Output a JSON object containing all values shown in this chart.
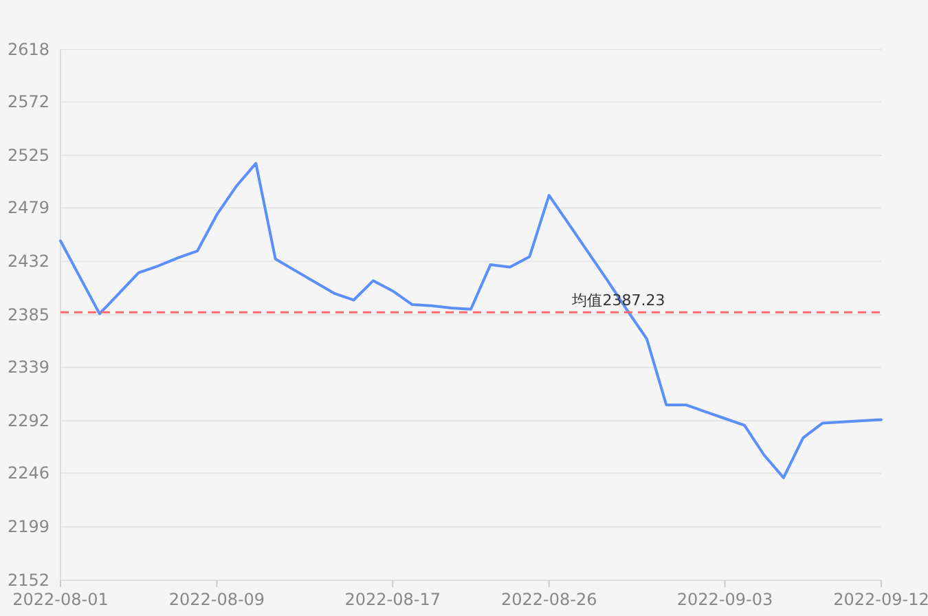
{
  "chart_data": {
    "type": "line",
    "categories": [
      "2022-08-01",
      null,
      null,
      null,
      null,
      null,
      null,
      null,
      "2022-08-09",
      null,
      null,
      null,
      null,
      null,
      null,
      null,
      null,
      "2022-08-17",
      null,
      null,
      null,
      null,
      null,
      null,
      null,
      "2022-08-26",
      null,
      null,
      null,
      null,
      null,
      null,
      null,
      null,
      "2022-09-03",
      null,
      null,
      null,
      null,
      null,
      null,
      null,
      "2022-09-12"
    ],
    "series": [
      {
        "color": "#5b8ff9",
        "values": [
          2450,
          2418,
          2386,
          2404,
          2422,
          2428,
          2435,
          2441,
          2473,
          2498,
          2518,
          2434,
          2424,
          2414,
          2404,
          2398,
          2415,
          2406,
          2394,
          2393,
          2391,
          2390,
          2429,
          2427,
          2436,
          2490,
          2465,
          2440,
          2415,
          2389,
          2364,
          2306,
          2306,
          2300,
          2294,
          2288,
          2262,
          2242,
          2277,
          2290,
          2291,
          2292,
          2293
        ]
      }
    ],
    "ylim": [
      2152,
      2618
    ],
    "yticks": [
      2152,
      2199,
      2246,
      2292,
      2339,
      2385,
      2432,
      2479,
      2525,
      2572,
      2618
    ],
    "grid": "y",
    "ref_lines": [
      {
        "axis": "y",
        "value": 2387.23,
        "label": "均值2387.23",
        "color": "#ff6b6b",
        "line_style": "dashed"
      }
    ]
  }
}
